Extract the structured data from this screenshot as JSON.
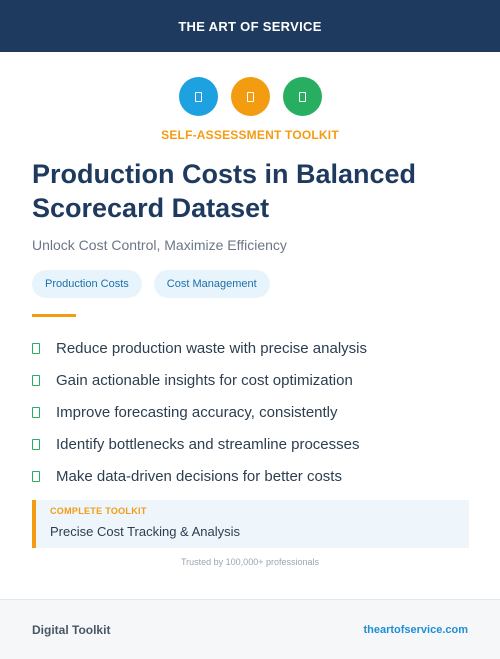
{
  "header": {
    "brand": "THE ART OF SERVICE"
  },
  "icons": [
    {
      "name": "document-icon",
      "color": "#1da1e0"
    },
    {
      "name": "document-icon",
      "color": "#f39c12"
    },
    {
      "name": "document-icon",
      "color": "#27ae60"
    }
  ],
  "hero": {
    "eyebrow": "SELF-ASSESSMENT TOOLKIT",
    "title": "Production Costs in Balanced Scorecard Dataset",
    "subtitle": "Unlock Cost Control, Maximize Efficiency"
  },
  "tags": [
    "Production Costs",
    "Cost Management"
  ],
  "features": [
    "Reduce production waste with precise analysis",
    "Gain actionable insights for cost optimization",
    "Improve forecasting accuracy, consistently",
    "Identify bottlenecks and streamline processes",
    "Make data-driven decisions for better costs"
  ],
  "callout": {
    "label": "COMPLETE TOOLKIT",
    "text": "Precise Cost Tracking & Analysis"
  },
  "trust": "Trusted by 100,000+ professionals",
  "footer": {
    "left": "Digital Toolkit",
    "right": "theartofservice.com"
  },
  "colors": {
    "navy": "#1e3a5f",
    "accent_orange": "#f39c12",
    "accent_blue": "#1da1e0",
    "accent_green": "#27ae60"
  }
}
